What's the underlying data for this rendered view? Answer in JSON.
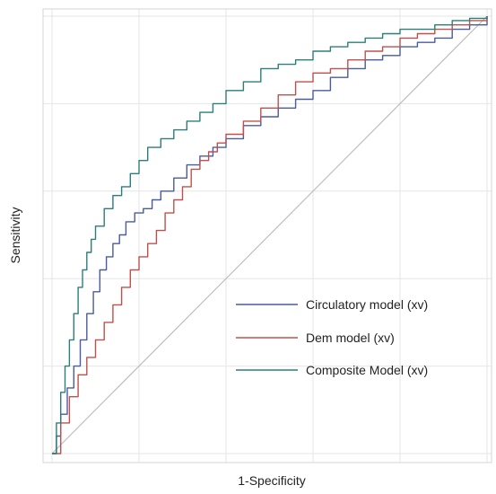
{
  "chart_data": {
    "type": "line",
    "title": "",
    "xlabel": "1-Specificity",
    "ylabel": "Sensitivity",
    "xlim": [
      0,
      1
    ],
    "ylim": [
      0,
      1
    ],
    "grid": true,
    "x_tick_labels_shown": false,
    "y_tick_labels_shown": false,
    "legend_position": "bottom-right",
    "reference_line": {
      "x": [
        0,
        1
      ],
      "y": [
        0,
        1
      ],
      "color": "#bdbdbd"
    },
    "series": [
      {
        "name": "Circulatory model (xv)",
        "color": "#4a5b9e",
        "x": [
          0,
          0.01,
          0.02,
          0.035,
          0.05,
          0.065,
          0.08,
          0.095,
          0.11,
          0.125,
          0.14,
          0.155,
          0.17,
          0.19,
          0.21,
          0.23,
          0.25,
          0.28,
          0.31,
          0.34,
          0.37,
          0.4,
          0.44,
          0.48,
          0.52,
          0.56,
          0.6,
          0.64,
          0.68,
          0.72,
          0.76,
          0.8,
          0.84,
          0.88,
          0.92,
          0.96,
          1
        ],
        "y": [
          0,
          0.04,
          0.09,
          0.15,
          0.2,
          0.26,
          0.32,
          0.37,
          0.42,
          0.45,
          0.48,
          0.5,
          0.53,
          0.55,
          0.56,
          0.58,
          0.6,
          0.63,
          0.66,
          0.68,
          0.7,
          0.72,
          0.75,
          0.77,
          0.79,
          0.81,
          0.83,
          0.86,
          0.88,
          0.9,
          0.91,
          0.93,
          0.94,
          0.95,
          0.97,
          0.98,
          1
        ]
      },
      {
        "name": "Dem model (xv)",
        "color": "#c0504d",
        "x": [
          0,
          0.02,
          0.04,
          0.06,
          0.08,
          0.1,
          0.12,
          0.14,
          0.16,
          0.18,
          0.2,
          0.22,
          0.24,
          0.26,
          0.28,
          0.3,
          0.32,
          0.34,
          0.36,
          0.38,
          0.4,
          0.44,
          0.48,
          0.52,
          0.56,
          0.6,
          0.64,
          0.68,
          0.72,
          0.76,
          0.8,
          0.84,
          0.88,
          0.92,
          0.96,
          1
        ],
        "y": [
          0,
          0.07,
          0.13,
          0.18,
          0.22,
          0.26,
          0.3,
          0.34,
          0.38,
          0.42,
          0.45,
          0.48,
          0.51,
          0.55,
          0.58,
          0.61,
          0.65,
          0.67,
          0.69,
          0.71,
          0.73,
          0.76,
          0.79,
          0.82,
          0.85,
          0.87,
          0.88,
          0.9,
          0.92,
          0.93,
          0.95,
          0.96,
          0.97,
          0.98,
          0.99,
          1
        ]
      },
      {
        "name": "Composite Model (xv)",
        "color": "#2a7f7a",
        "x": [
          0,
          0.01,
          0.02,
          0.03,
          0.04,
          0.05,
          0.06,
          0.07,
          0.08,
          0.09,
          0.1,
          0.12,
          0.14,
          0.16,
          0.18,
          0.2,
          0.22,
          0.25,
          0.28,
          0.31,
          0.34,
          0.37,
          0.4,
          0.44,
          0.48,
          0.52,
          0.56,
          0.6,
          0.64,
          0.68,
          0.72,
          0.76,
          0.8,
          0.84,
          0.88,
          0.92,
          0.96,
          1
        ],
        "y": [
          0,
          0.07,
          0.14,
          0.2,
          0.26,
          0.32,
          0.38,
          0.42,
          0.46,
          0.49,
          0.52,
          0.56,
          0.59,
          0.61,
          0.64,
          0.67,
          0.7,
          0.72,
          0.74,
          0.76,
          0.78,
          0.8,
          0.83,
          0.85,
          0.88,
          0.89,
          0.9,
          0.92,
          0.93,
          0.94,
          0.95,
          0.96,
          0.97,
          0.97,
          0.98,
          0.99,
          0.995,
          1
        ]
      }
    ]
  }
}
